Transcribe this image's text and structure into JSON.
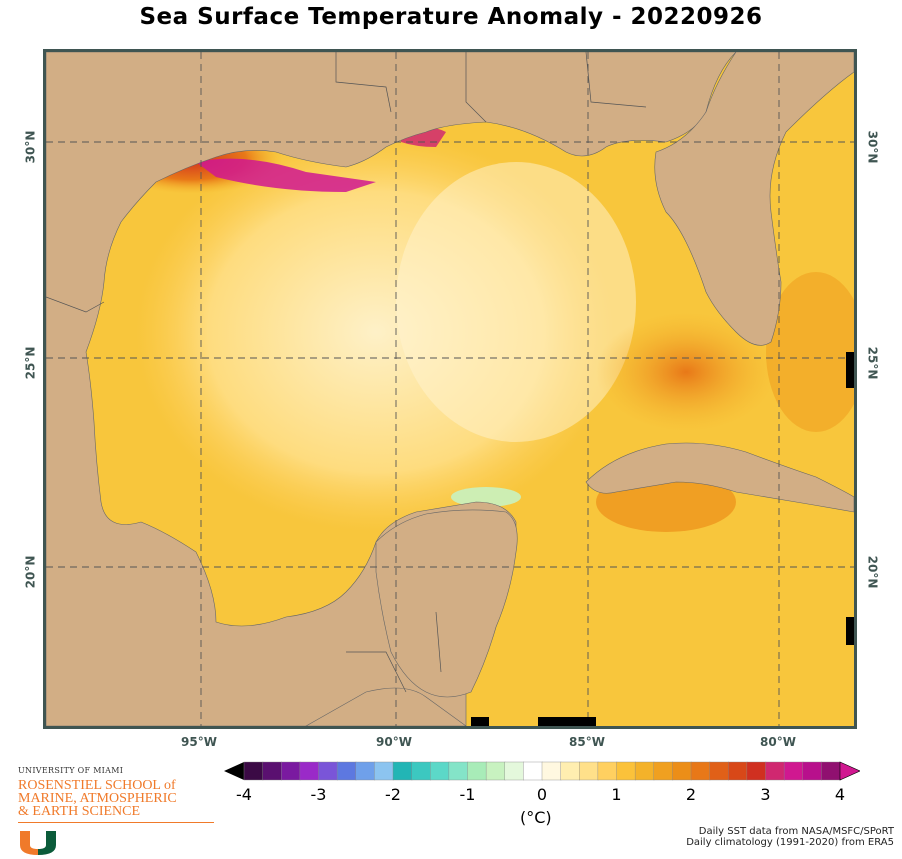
{
  "title": "Sea Surface Temperature Anomaly - 20220926",
  "map": {
    "longitude_labels": [
      "95°W",
      "90°W",
      "85°W",
      "80°W"
    ],
    "latitude_labels": [
      "30°N",
      "25°N",
      "20°N"
    ],
    "land_color": "#d2ae85",
    "grid_style": "dashed",
    "border_color": "#3f5552"
  },
  "colorbar": {
    "ticks": [
      "-4",
      "-3",
      "-2",
      "-1",
      "0",
      "1",
      "2",
      "3",
      "4"
    ],
    "unit": "(°C)",
    "range": [
      -4,
      4
    ],
    "colors": [
      "#3b0a45",
      "#5a1070",
      "#7a1aa0",
      "#9a2ac8",
      "#7a55d8",
      "#5d78e0",
      "#6fa0ea",
      "#8cc4f0",
      "#22b5b5",
      "#3cc8c0",
      "#5cd8c8",
      "#84e4c8",
      "#a8ecb8",
      "#c8f2c0",
      "#e4f8dc",
      "#ffffff",
      "#fff8e0",
      "#ffeeb0",
      "#ffe08a",
      "#ffd060",
      "#fbc23a",
      "#f4b22a",
      "#f0a020",
      "#ec8e18",
      "#e87818",
      "#e06018",
      "#d84818",
      "#d03020",
      "#d02870",
      "#d01890",
      "#b8108c",
      "#901070"
    ]
  },
  "logo": {
    "university": "UNIVERSITY OF MIAMI",
    "school_lines": [
      "ROSENSTIEL SCHOOL of",
      "MARINE, ATMOSPHERIC",
      "& EARTH SCIENCE"
    ],
    "brand_orange": "#f07a2a",
    "brand_green": "#0b5b3a"
  },
  "credits": [
    "Daily SST data from NASA/MSFC/SPoRT",
    "Daily climatology (1991-2020) from ERA5"
  ]
}
